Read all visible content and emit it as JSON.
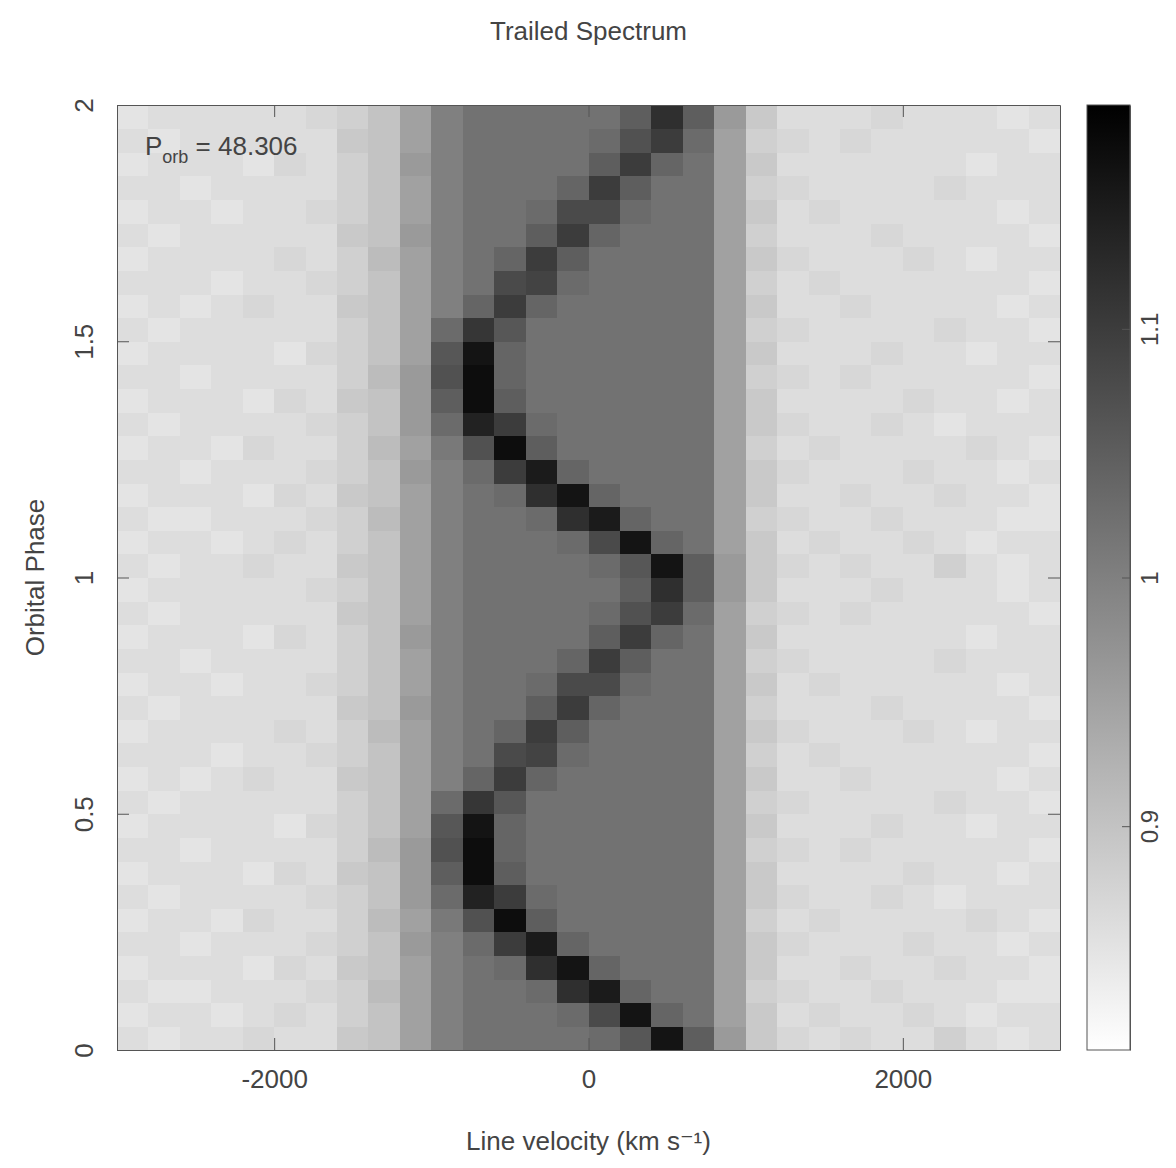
{
  "chart_data": {
    "type": "heatmap",
    "title": "Trailed Spectrum",
    "annotation": {
      "symbol": "P",
      "subscript": "orb",
      "text": " = 48.306"
    },
    "xlabel": "Line velocity (km s⁻¹)",
    "ylabel": "Orbital Phase",
    "xlim": [
      -3000,
      3000
    ],
    "xticks": [
      -2000,
      0,
      2000
    ],
    "ylim": [
      0,
      2
    ],
    "yticks": [
      0,
      0.5,
      1,
      1.5,
      2
    ],
    "x_bins": [
      -3000,
      -2800,
      -2600,
      -2400,
      -2200,
      -2000,
      -1800,
      -1600,
      -1400,
      -1200,
      -1000,
      -800,
      -600,
      -400,
      -200,
      0,
      200,
      400,
      600,
      800,
      1000,
      1200,
      1400,
      1600,
      1800,
      2000,
      2200,
      2400,
      2600,
      2800,
      3000
    ],
    "y_bins": [
      0,
      0.05,
      0.1,
      0.15,
      0.2,
      0.25,
      0.3,
      0.35,
      0.4,
      0.45,
      0.5,
      0.55,
      0.6,
      0.65,
      0.7,
      0.75,
      0.8,
      0.85,
      0.9,
      0.95,
      1,
      1.05,
      1.1,
      1.15,
      1.2,
      1.25,
      1.3,
      1.35,
      1.4,
      1.45,
      1.5,
      1.55,
      1.6,
      1.65,
      1.7,
      1.75,
      1.8,
      1.85,
      1.9,
      1.95,
      2
    ],
    "cells": [
      [
        0.86,
        0.85,
        0.86,
        0.86,
        0.87,
        0.86,
        0.86,
        0.89,
        0.9,
        0.95,
        1.0,
        1.02,
        1.02,
        1.02,
        1.02,
        1.03,
        1.06,
        1.16,
        1.05,
        0.96,
        0.89,
        0.87,
        0.86,
        0.87,
        0.86,
        0.86,
        0.88,
        0.86,
        0.85,
        0.86
      ],
      [
        0.85,
        0.86,
        0.86,
        0.85,
        0.86,
        0.87,
        0.86,
        0.88,
        0.9,
        0.95,
        1.0,
        1.02,
        1.02,
        1.02,
        1.03,
        1.08,
        1.16,
        1.04,
        1.02,
        0.95,
        0.89,
        0.86,
        0.87,
        0.86,
        0.86,
        0.87,
        0.86,
        0.85,
        0.86,
        0.86
      ],
      [
        0.86,
        0.85,
        0.85,
        0.86,
        0.86,
        0.86,
        0.87,
        0.88,
        0.91,
        0.95,
        1.0,
        1.02,
        1.02,
        1.03,
        1.12,
        1.15,
        1.04,
        1.02,
        1.02,
        0.95,
        0.88,
        0.87,
        0.86,
        0.86,
        0.87,
        0.86,
        0.86,
        0.86,
        0.85,
        0.85
      ],
      [
        0.85,
        0.86,
        0.86,
        0.86,
        0.85,
        0.87,
        0.86,
        0.89,
        0.9,
        0.95,
        1.0,
        1.02,
        1.03,
        1.12,
        1.16,
        1.04,
        1.02,
        1.02,
        1.02,
        0.95,
        0.89,
        0.86,
        0.86,
        0.87,
        0.86,
        0.86,
        0.87,
        0.86,
        0.86,
        0.85
      ],
      [
        0.86,
        0.86,
        0.85,
        0.86,
        0.86,
        0.86,
        0.87,
        0.88,
        0.9,
        0.96,
        1.0,
        1.03,
        1.1,
        1.15,
        1.04,
        1.02,
        1.02,
        1.02,
        1.02,
        0.95,
        0.89,
        0.87,
        0.86,
        0.86,
        0.86,
        0.87,
        0.86,
        0.86,
        0.85,
        0.86
      ],
      [
        0.85,
        0.86,
        0.86,
        0.85,
        0.87,
        0.86,
        0.86,
        0.88,
        0.91,
        0.95,
        1.01,
        1.07,
        1.17,
        1.05,
        1.02,
        1.02,
        1.02,
        1.02,
        1.02,
        0.95,
        0.88,
        0.86,
        0.87,
        0.86,
        0.86,
        0.86,
        0.86,
        0.87,
        0.86,
        0.85
      ],
      [
        0.86,
        0.85,
        0.86,
        0.86,
        0.86,
        0.86,
        0.87,
        0.88,
        0.9,
        0.96,
        1.03,
        1.14,
        1.1,
        1.03,
        1.02,
        1.02,
        1.02,
        1.02,
        1.02,
        0.95,
        0.89,
        0.87,
        0.86,
        0.86,
        0.87,
        0.86,
        0.85,
        0.86,
        0.86,
        0.86
      ],
      [
        0.85,
        0.86,
        0.86,
        0.86,
        0.85,
        0.87,
        0.86,
        0.89,
        0.9,
        0.96,
        1.05,
        1.17,
        1.05,
        1.02,
        1.02,
        1.02,
        1.02,
        1.02,
        1.02,
        0.95,
        0.89,
        0.86,
        0.86,
        0.86,
        0.86,
        0.87,
        0.86,
        0.86,
        0.85,
        0.86
      ],
      [
        0.86,
        0.86,
        0.85,
        0.86,
        0.86,
        0.86,
        0.86,
        0.88,
        0.91,
        0.96,
        1.07,
        1.17,
        1.04,
        1.02,
        1.02,
        1.02,
        1.02,
        1.02,
        1.02,
        0.95,
        0.88,
        0.87,
        0.86,
        0.87,
        0.86,
        0.86,
        0.86,
        0.86,
        0.86,
        0.85
      ],
      [
        0.85,
        0.86,
        0.86,
        0.86,
        0.86,
        0.85,
        0.87,
        0.88,
        0.9,
        0.95,
        1.06,
        1.16,
        1.04,
        1.02,
        1.02,
        1.02,
        1.02,
        1.02,
        1.02,
        0.95,
        0.89,
        0.86,
        0.86,
        0.86,
        0.87,
        0.86,
        0.86,
        0.85,
        0.86,
        0.86
      ],
      [
        0.86,
        0.85,
        0.86,
        0.86,
        0.86,
        0.86,
        0.86,
        0.88,
        0.9,
        0.95,
        1.03,
        1.11,
        1.06,
        1.02,
        1.02,
        1.02,
        1.02,
        1.02,
        1.02,
        0.95,
        0.88,
        0.87,
        0.86,
        0.86,
        0.86,
        0.86,
        0.87,
        0.86,
        0.86,
        0.85
      ],
      [
        0.85,
        0.86,
        0.85,
        0.86,
        0.87,
        0.86,
        0.86,
        0.89,
        0.9,
        0.95,
        1.0,
        1.04,
        1.1,
        1.04,
        1.02,
        1.02,
        1.02,
        1.02,
        1.02,
        0.95,
        0.89,
        0.86,
        0.86,
        0.87,
        0.86,
        0.86,
        0.86,
        0.86,
        0.85,
        0.86
      ],
      [
        0.86,
        0.86,
        0.86,
        0.85,
        0.86,
        0.86,
        0.87,
        0.88,
        0.9,
        0.95,
        1.0,
        1.02,
        1.08,
        1.09,
        1.03,
        1.02,
        1.02,
        1.02,
        1.02,
        0.95,
        0.88,
        0.86,
        0.87,
        0.86,
        0.86,
        0.86,
        0.86,
        0.86,
        0.86,
        0.85
      ],
      [
        0.85,
        0.86,
        0.86,
        0.86,
        0.86,
        0.87,
        0.86,
        0.88,
        0.91,
        0.95,
        1.0,
        1.02,
        1.04,
        1.1,
        1.05,
        1.02,
        1.02,
        1.02,
        1.02,
        0.95,
        0.89,
        0.87,
        0.86,
        0.86,
        0.86,
        0.87,
        0.86,
        0.85,
        0.86,
        0.86
      ],
      [
        0.86,
        0.85,
        0.86,
        0.86,
        0.86,
        0.86,
        0.86,
        0.89,
        0.9,
        0.96,
        1.0,
        1.02,
        1.02,
        1.05,
        1.1,
        1.04,
        1.02,
        1.02,
        1.02,
        0.95,
        0.88,
        0.86,
        0.86,
        0.86,
        0.87,
        0.86,
        0.86,
        0.86,
        0.86,
        0.85
      ],
      [
        0.85,
        0.86,
        0.86,
        0.85,
        0.86,
        0.86,
        0.87,
        0.88,
        0.9,
        0.95,
        1.0,
        1.02,
        1.02,
        1.03,
        1.08,
        1.08,
        1.03,
        1.02,
        1.02,
        0.95,
        0.89,
        0.86,
        0.87,
        0.86,
        0.86,
        0.86,
        0.86,
        0.86,
        0.85,
        0.86
      ],
      [
        0.86,
        0.86,
        0.85,
        0.86,
        0.86,
        0.86,
        0.86,
        0.88,
        0.9,
        0.95,
        1.0,
        1.02,
        1.02,
        1.02,
        1.04,
        1.1,
        1.05,
        1.02,
        1.02,
        0.95,
        0.88,
        0.87,
        0.86,
        0.86,
        0.86,
        0.86,
        0.87,
        0.86,
        0.86,
        0.86
      ],
      [
        0.85,
        0.86,
        0.86,
        0.86,
        0.85,
        0.87,
        0.86,
        0.88,
        0.9,
        0.96,
        1.0,
        1.02,
        1.02,
        1.02,
        1.02,
        1.05,
        1.1,
        1.04,
        1.02,
        0.95,
        0.89,
        0.86,
        0.86,
        0.86,
        0.86,
        0.86,
        0.86,
        0.85,
        0.86,
        0.86
      ],
      [
        0.86,
        0.85,
        0.86,
        0.86,
        0.86,
        0.86,
        0.86,
        0.89,
        0.9,
        0.95,
        1.0,
        1.02,
        1.02,
        1.02,
        1.02,
        1.03,
        1.07,
        1.1,
        1.03,
        0.95,
        0.88,
        0.87,
        0.86,
        0.87,
        0.86,
        0.86,
        0.86,
        0.86,
        0.86,
        0.85
      ],
      [
        0.85,
        0.86,
        0.86,
        0.86,
        0.86,
        0.86,
        0.87,
        0.88,
        0.9,
        0.95,
        1.0,
        1.02,
        1.02,
        1.02,
        1.02,
        1.02,
        1.05,
        1.12,
        1.05,
        0.96,
        0.89,
        0.86,
        0.86,
        0.86,
        0.87,
        0.86,
        0.86,
        0.86,
        0.85,
        0.86
      ],
      [
        0.86,
        0.85,
        0.86,
        0.86,
        0.87,
        0.86,
        0.86,
        0.89,
        0.9,
        0.95,
        1.0,
        1.02,
        1.02,
        1.02,
        1.02,
        1.03,
        1.06,
        1.16,
        1.05,
        0.96,
        0.89,
        0.87,
        0.86,
        0.87,
        0.86,
        0.86,
        0.88,
        0.86,
        0.85,
        0.86
      ],
      [
        0.85,
        0.86,
        0.86,
        0.85,
        0.86,
        0.87,
        0.86,
        0.88,
        0.9,
        0.95,
        1.0,
        1.02,
        1.02,
        1.02,
        1.03,
        1.08,
        1.16,
        1.04,
        1.02,
        0.95,
        0.89,
        0.86,
        0.87,
        0.86,
        0.86,
        0.87,
        0.86,
        0.85,
        0.86,
        0.86
      ],
      [
        0.86,
        0.85,
        0.85,
        0.86,
        0.86,
        0.86,
        0.87,
        0.88,
        0.91,
        0.95,
        1.0,
        1.02,
        1.02,
        1.03,
        1.12,
        1.15,
        1.04,
        1.02,
        1.02,
        0.95,
        0.88,
        0.87,
        0.86,
        0.86,
        0.87,
        0.86,
        0.86,
        0.86,
        0.85,
        0.85
      ],
      [
        0.85,
        0.86,
        0.86,
        0.86,
        0.85,
        0.87,
        0.86,
        0.89,
        0.9,
        0.95,
        1.0,
        1.02,
        1.03,
        1.12,
        1.16,
        1.04,
        1.02,
        1.02,
        1.02,
        0.95,
        0.89,
        0.86,
        0.86,
        0.87,
        0.86,
        0.86,
        0.87,
        0.86,
        0.86,
        0.85
      ],
      [
        0.86,
        0.86,
        0.85,
        0.86,
        0.86,
        0.86,
        0.87,
        0.88,
        0.9,
        0.96,
        1.0,
        1.03,
        1.1,
        1.15,
        1.04,
        1.02,
        1.02,
        1.02,
        1.02,
        0.95,
        0.89,
        0.87,
        0.86,
        0.86,
        0.86,
        0.87,
        0.86,
        0.86,
        0.85,
        0.86
      ],
      [
        0.85,
        0.86,
        0.86,
        0.85,
        0.87,
        0.86,
        0.86,
        0.88,
        0.91,
        0.95,
        1.01,
        1.07,
        1.17,
        1.05,
        1.02,
        1.02,
        1.02,
        1.02,
        1.02,
        0.95,
        0.88,
        0.86,
        0.87,
        0.86,
        0.86,
        0.86,
        0.86,
        0.87,
        0.86,
        0.85
      ],
      [
        0.86,
        0.85,
        0.86,
        0.86,
        0.86,
        0.86,
        0.87,
        0.88,
        0.9,
        0.96,
        1.03,
        1.14,
        1.1,
        1.03,
        1.02,
        1.02,
        1.02,
        1.02,
        1.02,
        0.95,
        0.89,
        0.87,
        0.86,
        0.86,
        0.87,
        0.86,
        0.85,
        0.86,
        0.86,
        0.86
      ],
      [
        0.85,
        0.86,
        0.86,
        0.86,
        0.85,
        0.87,
        0.86,
        0.89,
        0.9,
        0.96,
        1.05,
        1.17,
        1.05,
        1.02,
        1.02,
        1.02,
        1.02,
        1.02,
        1.02,
        0.95,
        0.89,
        0.86,
        0.86,
        0.86,
        0.86,
        0.87,
        0.86,
        0.86,
        0.85,
        0.86
      ],
      [
        0.86,
        0.86,
        0.85,
        0.86,
        0.86,
        0.86,
        0.86,
        0.88,
        0.91,
        0.96,
        1.07,
        1.17,
        1.04,
        1.02,
        1.02,
        1.02,
        1.02,
        1.02,
        1.02,
        0.95,
        0.88,
        0.87,
        0.86,
        0.87,
        0.86,
        0.86,
        0.86,
        0.86,
        0.86,
        0.85
      ],
      [
        0.85,
        0.86,
        0.86,
        0.86,
        0.86,
        0.85,
        0.87,
        0.88,
        0.9,
        0.95,
        1.06,
        1.16,
        1.04,
        1.02,
        1.02,
        1.02,
        1.02,
        1.02,
        1.02,
        0.95,
        0.89,
        0.86,
        0.86,
        0.86,
        0.87,
        0.86,
        0.86,
        0.85,
        0.86,
        0.86
      ],
      [
        0.86,
        0.85,
        0.86,
        0.86,
        0.86,
        0.86,
        0.86,
        0.88,
        0.9,
        0.95,
        1.03,
        1.11,
        1.06,
        1.02,
        1.02,
        1.02,
        1.02,
        1.02,
        1.02,
        0.95,
        0.88,
        0.87,
        0.86,
        0.86,
        0.86,
        0.86,
        0.87,
        0.86,
        0.86,
        0.85
      ],
      [
        0.85,
        0.86,
        0.85,
        0.86,
        0.87,
        0.86,
        0.86,
        0.89,
        0.9,
        0.95,
        1.0,
        1.04,
        1.1,
        1.04,
        1.02,
        1.02,
        1.02,
        1.02,
        1.02,
        0.95,
        0.89,
        0.86,
        0.86,
        0.87,
        0.86,
        0.86,
        0.86,
        0.86,
        0.85,
        0.86
      ],
      [
        0.86,
        0.86,
        0.86,
        0.85,
        0.86,
        0.86,
        0.87,
        0.88,
        0.9,
        0.95,
        1.0,
        1.02,
        1.08,
        1.09,
        1.03,
        1.02,
        1.02,
        1.02,
        1.02,
        0.95,
        0.88,
        0.86,
        0.87,
        0.86,
        0.86,
        0.86,
        0.86,
        0.86,
        0.86,
        0.85
      ],
      [
        0.85,
        0.86,
        0.86,
        0.86,
        0.86,
        0.87,
        0.86,
        0.88,
        0.91,
        0.95,
        1.0,
        1.02,
        1.04,
        1.1,
        1.05,
        1.02,
        1.02,
        1.02,
        1.02,
        0.95,
        0.89,
        0.87,
        0.86,
        0.86,
        0.86,
        0.87,
        0.86,
        0.85,
        0.86,
        0.86
      ],
      [
        0.86,
        0.85,
        0.86,
        0.86,
        0.86,
        0.86,
        0.86,
        0.89,
        0.9,
        0.96,
        1.0,
        1.02,
        1.02,
        1.05,
        1.1,
        1.04,
        1.02,
        1.02,
        1.02,
        0.95,
        0.88,
        0.86,
        0.86,
        0.86,
        0.87,
        0.86,
        0.86,
        0.86,
        0.86,
        0.85
      ],
      [
        0.85,
        0.86,
        0.86,
        0.85,
        0.86,
        0.86,
        0.87,
        0.88,
        0.9,
        0.95,
        1.0,
        1.02,
        1.02,
        1.03,
        1.08,
        1.08,
        1.03,
        1.02,
        1.02,
        0.95,
        0.89,
        0.86,
        0.87,
        0.86,
        0.86,
        0.86,
        0.86,
        0.86,
        0.85,
        0.86
      ],
      [
        0.86,
        0.86,
        0.85,
        0.86,
        0.86,
        0.86,
        0.86,
        0.88,
        0.9,
        0.95,
        1.0,
        1.02,
        1.02,
        1.02,
        1.04,
        1.1,
        1.05,
        1.02,
        1.02,
        0.95,
        0.88,
        0.87,
        0.86,
        0.86,
        0.86,
        0.86,
        0.87,
        0.86,
        0.86,
        0.86
      ],
      [
        0.85,
        0.86,
        0.86,
        0.86,
        0.85,
        0.87,
        0.86,
        0.88,
        0.9,
        0.96,
        1.0,
        1.02,
        1.02,
        1.02,
        1.02,
        1.05,
        1.1,
        1.04,
        1.02,
        0.95,
        0.89,
        0.86,
        0.86,
        0.86,
        0.86,
        0.86,
        0.86,
        0.85,
        0.86,
        0.86
      ],
      [
        0.86,
        0.85,
        0.86,
        0.86,
        0.86,
        0.86,
        0.86,
        0.89,
        0.9,
        0.95,
        1.0,
        1.02,
        1.02,
        1.02,
        1.02,
        1.03,
        1.07,
        1.1,
        1.03,
        0.95,
        0.88,
        0.87,
        0.86,
        0.87,
        0.86,
        0.86,
        0.86,
        0.86,
        0.86,
        0.85
      ],
      [
        0.85,
        0.86,
        0.86,
        0.86,
        0.86,
        0.86,
        0.87,
        0.88,
        0.9,
        0.95,
        1.0,
        1.02,
        1.02,
        1.02,
        1.02,
        1.02,
        1.05,
        1.12,
        1.05,
        0.96,
        0.89,
        0.86,
        0.86,
        0.86,
        0.87,
        0.86,
        0.86,
        0.86,
        0.85,
        0.86
      ]
    ],
    "colorbar": {
      "range": [
        0.81,
        1.19
      ],
      "ticks": [
        0.9,
        1,
        1.1
      ]
    }
  }
}
